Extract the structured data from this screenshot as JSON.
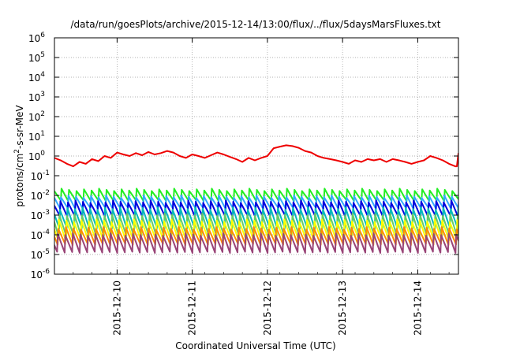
{
  "chart_data": {
    "type": "line",
    "title": "/data/run/goesPlots/archive/2015-12-14/13:00/flux/../flux/5daysMarsFluxes.txt",
    "xlabel": "Coordinated Universal Time (UTC)",
    "ylabel_parts": {
      "base": "protons/cm",
      "sup": "2",
      "rest": "-s-sr-MeV"
    },
    "y_scale": "log",
    "ylim": [
      1e-06,
      1000000.0
    ],
    "xlim": [
      "2015-12-09 04:00",
      "2015-12-14 13:00"
    ],
    "grid": true,
    "legend": "none",
    "y_ticks": [
      {
        "value": 1e-06,
        "base": "10",
        "exp": "-6"
      },
      {
        "value": 1e-05,
        "base": "10",
        "exp": "-5"
      },
      {
        "value": 0.0001,
        "base": "10",
        "exp": "-4"
      },
      {
        "value": 0.001,
        "base": "10",
        "exp": "-3"
      },
      {
        "value": 0.01,
        "base": "10",
        "exp": "-2"
      },
      {
        "value": 0.1,
        "base": "10",
        "exp": "-1"
      },
      {
        "value": 1.0,
        "base": "10",
        "exp": "0"
      },
      {
        "value": 10.0,
        "base": "10",
        "exp": "1"
      },
      {
        "value": 100.0,
        "base": "10",
        "exp": "2"
      },
      {
        "value": 1000.0,
        "base": "10",
        "exp": "3"
      },
      {
        "value": 10000.0,
        "base": "10",
        "exp": "4"
      },
      {
        "value": 100000.0,
        "base": "10",
        "exp": "5"
      },
      {
        "value": 1000000.0,
        "base": "10",
        "exp": "6"
      }
    ],
    "x_ticks": [
      "2015-12-10",
      "2015-12-11",
      "2015-12-12",
      "2015-12-13",
      "2015-12-14"
    ],
    "sawtooth_period_hours": 2.4,
    "series": [
      {
        "color": "#ee0000",
        "line_width": 2,
        "points": [
          [
            "2015-12-09 04:00",
            0.8
          ],
          [
            "2015-12-09 06:00",
            0.6
          ],
          [
            "2015-12-09 08:00",
            0.4
          ],
          [
            "2015-12-09 10:00",
            0.3
          ],
          [
            "2015-12-09 12:00",
            0.5
          ],
          [
            "2015-12-09 14:00",
            0.4
          ],
          [
            "2015-12-09 16:00",
            0.7
          ],
          [
            "2015-12-09 18:00",
            0.55
          ],
          [
            "2015-12-09 20:00",
            1.0
          ],
          [
            "2015-12-09 22:00",
            0.8
          ],
          [
            "2015-12-10 00:00",
            1.5
          ],
          [
            "2015-12-10 02:00",
            1.2
          ],
          [
            "2015-12-10 04:00",
            1.0
          ],
          [
            "2015-12-10 06:00",
            1.4
          ],
          [
            "2015-12-10 08:00",
            1.1
          ],
          [
            "2015-12-10 10:00",
            1.6
          ],
          [
            "2015-12-10 12:00",
            1.2
          ],
          [
            "2015-12-10 14:00",
            1.4
          ],
          [
            "2015-12-10 16:00",
            1.8
          ],
          [
            "2015-12-10 18:00",
            1.5
          ],
          [
            "2015-12-10 20:00",
            1.0
          ],
          [
            "2015-12-10 22:00",
            0.8
          ],
          [
            "2015-12-11 00:00",
            1.2
          ],
          [
            "2015-12-11 02:00",
            1.0
          ],
          [
            "2015-12-11 04:00",
            0.8
          ],
          [
            "2015-12-11 06:00",
            1.1
          ],
          [
            "2015-12-11 08:00",
            1.5
          ],
          [
            "2015-12-11 10:00",
            1.2
          ],
          [
            "2015-12-11 12:00",
            0.9
          ],
          [
            "2015-12-11 14:00",
            0.7
          ],
          [
            "2015-12-11 16:00",
            0.5
          ],
          [
            "2015-12-11 18:00",
            0.8
          ],
          [
            "2015-12-11 20:00",
            0.6
          ],
          [
            "2015-12-11 22:00",
            0.8
          ],
          [
            "2015-12-12 00:00",
            1.0
          ],
          [
            "2015-12-12 02:00",
            2.5
          ],
          [
            "2015-12-12 04:00",
            3.0
          ],
          [
            "2015-12-12 06:00",
            3.5
          ],
          [
            "2015-12-12 08:00",
            3.2
          ],
          [
            "2015-12-12 10:00",
            2.6
          ],
          [
            "2015-12-12 12:00",
            1.8
          ],
          [
            "2015-12-12 14:00",
            1.5
          ],
          [
            "2015-12-12 16:00",
            1.0
          ],
          [
            "2015-12-12 18:00",
            0.8
          ],
          [
            "2015-12-12 20:00",
            0.7
          ],
          [
            "2015-12-12 22:00",
            0.6
          ],
          [
            "2015-12-13 00:00",
            0.5
          ],
          [
            "2015-12-13 02:00",
            0.4
          ],
          [
            "2015-12-13 04:00",
            0.6
          ],
          [
            "2015-12-13 06:00",
            0.5
          ],
          [
            "2015-12-13 08:00",
            0.7
          ],
          [
            "2015-12-13 10:00",
            0.6
          ],
          [
            "2015-12-13 12:00",
            0.7
          ],
          [
            "2015-12-13 14:00",
            0.5
          ],
          [
            "2015-12-13 16:00",
            0.7
          ],
          [
            "2015-12-13 18:00",
            0.6
          ],
          [
            "2015-12-13 20:00",
            0.5
          ],
          [
            "2015-12-13 22:00",
            0.4
          ],
          [
            "2015-12-14 00:00",
            0.5
          ],
          [
            "2015-12-14 02:00",
            0.6
          ],
          [
            "2015-12-14 04:00",
            1.0
          ],
          [
            "2015-12-14 06:00",
            0.8
          ],
          [
            "2015-12-14 08:00",
            0.6
          ],
          [
            "2015-12-14 10:00",
            0.4
          ],
          [
            "2015-12-14 12:00",
            0.3
          ],
          [
            "2015-12-14 12:30",
            0.3
          ],
          [
            "2015-12-14 13:00",
            1.4
          ]
        ]
      },
      {
        "color": "#22ee22",
        "line_width": 2,
        "sawtooth": {
          "low": 0.005,
          "high": 0.022
        }
      },
      {
        "color": "#33aaff",
        "line_width": 2,
        "sawtooth": {
          "low": 0.002,
          "high": 0.01
        }
      },
      {
        "color": "#0000dd",
        "line_width": 2,
        "sawtooth": {
          "low": 0.0008,
          "high": 0.0055
        }
      },
      {
        "color": "#00bbbb",
        "line_width": 2,
        "sawtooth": {
          "low": 0.0002,
          "high": 0.0025
        }
      },
      {
        "color": "#66cc66",
        "line_width": 2,
        "sawtooth": {
          "low": 8e-05,
          "high": 0.0012
        }
      },
      {
        "color": "#ffff00",
        "line_width": 2,
        "sawtooth": {
          "low": 5e-05,
          "high": 0.0006
        }
      },
      {
        "color": "#ff8c00",
        "line_width": 2,
        "sawtooth": {
          "low": 3e-05,
          "high": 0.00025
        }
      },
      {
        "color": "#994477",
        "line_width": 2,
        "sawtooth": {
          "low": 1.2e-05,
          "high": 0.00012
        }
      }
    ]
  }
}
